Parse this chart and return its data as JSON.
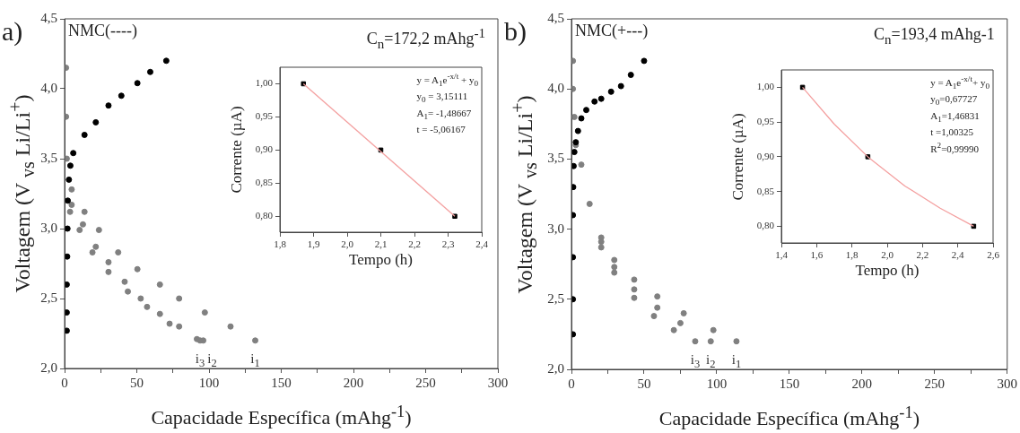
{
  "chart_data": [
    {
      "type": "scatter",
      "title": "a)",
      "xlabel": "Capacidade Específica (mAhg$^{-1}$)",
      "ylabel": "Voltagem (V $_{vs}$ Li/Li$^{+}$)",
      "xlim": [
        0,
        300
      ],
      "ylim": [
        2.0,
        4.5
      ],
      "xticks": [
        0,
        {
          "value": 25,
          "label": null
        },
        50,
        {
          "value": 75,
          "label": null
        },
        100,
        {
          "value": 125,
          "label": null
        },
        150,
        {
          "value": 175,
          "label": null
        },
        200,
        {
          "value": 225,
          "label": null
        },
        250,
        {
          "value": 275,
          "label": null
        },
        300
      ],
      "yticks": [
        {
          "value": 2.0,
          "label": "2,0"
        },
        {
          "value": 2.5,
          "label": "2,5"
        },
        {
          "value": 3.0,
          "label": "3,0"
        },
        {
          "value": 3.5,
          "label": "3,5"
        },
        {
          "value": 4.0,
          "label": "4,0"
        },
        {
          "value": 4.5,
          "label": "4,5"
        }
      ],
      "marker": "circle",
      "series": [
        {
          "color": "#000000",
          "x": [
            1.5,
            1.5,
            1.5,
            1.8,
            2,
            2.2,
            3,
            4,
            6,
            13.8,
            21.6,
            30.4,
            39.3,
            50.4,
            59.3,
            70.4
          ],
          "values": [
            2.27,
            2.4,
            2.6,
            2.8,
            3.0,
            3.2,
            3.35,
            3.45,
            3.54,
            3.67,
            3.76,
            3.88,
            3.95,
            4.04,
            4.12,
            4.2
          ]
        },
        {
          "name": "i$_{1}$",
          "color": "#808080",
          "x": [
            1,
            1,
            1.5,
            4.9,
            13.8,
            23.8,
            37.1,
            50.4,
            66,
            79.3,
            97.1,
            114.9,
            132
          ],
          "values": [
            4.15,
            3.8,
            3.5,
            3.28,
            3.12,
            2.99,
            2.83,
            2.71,
            2.6,
            2.5,
            2.4,
            2.3,
            2.2
          ]
        },
        {
          "name": "i$_{2}$",
          "color": "#808080",
          "x": [
            4.9,
            12.7,
            21.6,
            30.4,
            41.6,
            52.7,
            66,
            79.3,
            96
          ],
          "values": [
            3.17,
            3.03,
            2.87,
            2.76,
            2.62,
            2.5,
            2.39,
            2.3,
            2.2
          ]
        },
        {
          "name": "i$_{3}$",
          "color": "#808080",
          "x": [
            3.8,
            10.4,
            19.3,
            30.4,
            43.8,
            57.1,
            72.7,
            91.6,
            93.8
          ],
          "values": [
            3.12,
            2.99,
            2.83,
            2.69,
            2.55,
            2.44,
            2.32,
            2.21,
            2.2
          ]
        }
      ],
      "annotations": [
        "NMC(----)",
        "C$_{n}$=172,2 mAhg$^{-1}$"
      ]
    },
    {
      "type": "scatter",
      "xlabel": "Tempo (h)",
      "ylabel": "Corrente (µA)",
      "xlim": [
        1.8,
        2.4
      ],
      "ylim": [
        0.776,
        1.025
      ],
      "xticks": [
        {
          "value": 1.8,
          "label": "1,8"
        },
        {
          "value": 1.9,
          "label": "1,9"
        },
        {
          "value": 2.0,
          "label": "2,0"
        },
        {
          "value": 2.1,
          "label": "2,1"
        },
        {
          "value": 2.2,
          "label": "2,2"
        },
        {
          "value": 2.3,
          "label": "2,3"
        },
        {
          "value": 2.4,
          "label": "2,4"
        }
      ],
      "yticks": [
        {
          "value": 0.8,
          "label": "0,80"
        },
        {
          "value": 0.85,
          "label": "0,85"
        },
        {
          "value": 0.9,
          "label": "0,90"
        },
        {
          "value": 0.95,
          "label": "0,95"
        },
        {
          "value": 1.0,
          "label": "1,00"
        }
      ],
      "series": [
        {
          "type": "line",
          "marker": "none",
          "color": "#f4a0a0",
          "x": [
            1.87,
            2.32
          ],
          "values": [
            1.0,
            0.8
          ]
        },
        {
          "marker": "square",
          "color": "#000000",
          "x": [
            1.87,
            2.1,
            2.32
          ],
          "values": [
            1.0,
            0.9,
            0.8
          ]
        }
      ],
      "annotations": [
        "y = A$_{1}$e$^{-x/t}$ + y$_{0}$",
        "y$_{0}$ = 3,15111",
        "A$_{1}$= -1,48667",
        "t  = -5,06167"
      ]
    },
    {
      "type": "scatter",
      "title": "b)",
      "xlabel": "Capacidade Específica (mAhg$^{-1}$)",
      "ylabel": "Voltagem (V $_{vs}$ Li/Li$^{+}$)",
      "xlim": [
        0,
        300
      ],
      "ylim": [
        2.0,
        4.5
      ],
      "xticks": [
        0,
        {
          "value": 25,
          "label": null
        },
        50,
        {
          "value": 75,
          "label": null
        },
        100,
        {
          "value": 125,
          "label": null
        },
        150,
        {
          "value": 175,
          "label": null
        },
        200,
        {
          "value": 225,
          "label": null
        },
        250,
        {
          "value": 275,
          "label": null
        },
        300
      ],
      "yticks": [
        {
          "value": 2.0,
          "label": "2,0"
        },
        {
          "value": 2.5,
          "label": "2,5"
        },
        {
          "value": 3.0,
          "label": "3,0"
        },
        {
          "value": 3.5,
          "label": "3,5"
        },
        {
          "value": 4.0,
          "label": "4,0"
        },
        {
          "value": 4.5,
          "label": "4,5"
        }
      ],
      "marker": "circle",
      "series": [
        {
          "color": "#000000",
          "x": [
            1,
            1,
            1,
            1,
            1.2,
            1.5,
            2,
            3,
            4.5,
            6.8,
            10.2,
            15.9,
            20.5,
            27.3,
            34.1,
            40.9,
            50
          ],
          "values": [
            2.25,
            2.5,
            2.8,
            3.1,
            3.3,
            3.45,
            3.55,
            3.62,
            3.7,
            3.79,
            3.85,
            3.91,
            3.93,
            3.98,
            4.02,
            4.1,
            4.2
          ]
        },
        {
          "name": "i$_{1}$",
          "color": "#808080",
          "x": [
            1,
            1,
            2,
            3,
            6.8,
            12.5,
            20.5,
            29.5,
            43.2,
            59.1,
            77.3,
            97.7,
            113.6
          ],
          "values": [
            4.2,
            4.0,
            3.8,
            3.6,
            3.46,
            3.18,
            2.94,
            2.78,
            2.64,
            2.52,
            2.4,
            2.28,
            2.2
          ]
        },
        {
          "name": "i$_{2}$",
          "color": "#808080",
          "x": [
            20.5,
            29.5,
            43.2,
            59.1,
            75,
            95.9
          ],
          "values": [
            2.91,
            2.73,
            2.57,
            2.44,
            2.33,
            2.2
          ]
        },
        {
          "name": "i$_{3}$",
          "color": "#808080",
          "x": [
            20.5,
            29.5,
            43.2,
            56.8,
            70.5,
            85.2
          ],
          "values": [
            2.87,
            2.69,
            2.51,
            2.38,
            2.28,
            2.2
          ]
        }
      ],
      "annotations": [
        "NMC(+---)",
        "C$_{n}$=193,4 mAhg-1"
      ]
    },
    {
      "type": "scatter",
      "xlabel": "Tempo (h)",
      "ylabel": "Corrente (µA)",
      "xlim": [
        1.4,
        2.6
      ],
      "ylim": [
        0.776,
        1.025
      ],
      "xticks": [
        {
          "value": 1.4,
          "label": "1,4"
        },
        {
          "value": 1.6,
          "label": "1,6"
        },
        {
          "value": 1.8,
          "label": "1,8"
        },
        {
          "value": 2.0,
          "label": "2,0"
        },
        {
          "value": 2.2,
          "label": "2,2"
        },
        {
          "value": 2.4,
          "label": "2,4"
        },
        {
          "value": 2.6,
          "label": "2,6"
        }
      ],
      "yticks": [
        {
          "value": 0.8,
          "label": "0,80"
        },
        {
          "value": 0.85,
          "label": "0,85"
        },
        {
          "value": 0.9,
          "label": "0,90"
        },
        {
          "value": 0.95,
          "label": "0,95"
        },
        {
          "value": 1.0,
          "label": "1,00"
        }
      ],
      "series": [
        {
          "type": "line",
          "marker": "none",
          "color": "#f4a0a0",
          "x": [
            1.52,
            1.7,
            1.89,
            2.1,
            2.3,
            2.49
          ],
          "values": [
            1.0,
            0.947,
            0.9,
            0.858,
            0.826,
            0.8
          ]
        },
        {
          "marker": "square",
          "color": "#000000",
          "x": [
            1.52,
            1.89,
            2.49
          ],
          "values": [
            1.0,
            0.9,
            0.8
          ]
        }
      ],
      "annotations": [
        "y = A$_{1}$e$^{-x/t}$+ y$_{0}$",
        "y$_{0}$=0,67727",
        "A$_{1}$=1,46831",
        "t =1,00325",
        "R$^{2}$=0,99990"
      ]
    }
  ]
}
